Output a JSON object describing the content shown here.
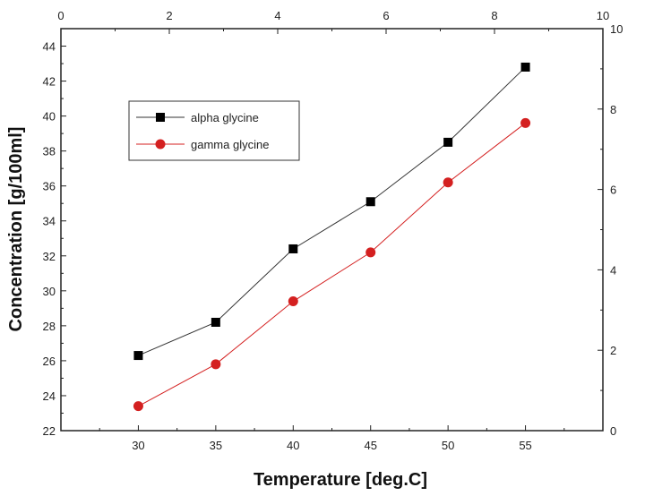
{
  "chart_data": {
    "type": "line",
    "xlabel": "Temperature [deg.C]",
    "ylabel": "Concentration [g/100ml]",
    "x": [
      30,
      35,
      40,
      45,
      50,
      55
    ],
    "xlim": [
      25,
      60
    ],
    "ylim": [
      22,
      45
    ],
    "xticks": [
      30,
      35,
      40,
      45,
      50,
      55
    ],
    "yticks": [
      22,
      24,
      26,
      28,
      30,
      32,
      34,
      36,
      38,
      40,
      42,
      44
    ],
    "top_axis": {
      "range": [
        0,
        10
      ],
      "ticks": [
        0,
        2,
        4,
        6,
        8,
        10
      ]
    },
    "right_axis": {
      "range": [
        0,
        10
      ],
      "ticks": [
        0,
        2,
        4,
        6,
        8,
        10
      ]
    },
    "grid": false,
    "legend_position": "top-left",
    "series": [
      {
        "name": "alpha glycine",
        "color": "#000000",
        "marker": "square",
        "values": [
          26.3,
          28.2,
          32.4,
          35.1,
          38.5,
          42.8
        ]
      },
      {
        "name": "gamma glycine",
        "color": "#d42020",
        "marker": "circle",
        "values": [
          23.4,
          25.8,
          29.4,
          32.2,
          36.2,
          39.6
        ]
      }
    ]
  }
}
